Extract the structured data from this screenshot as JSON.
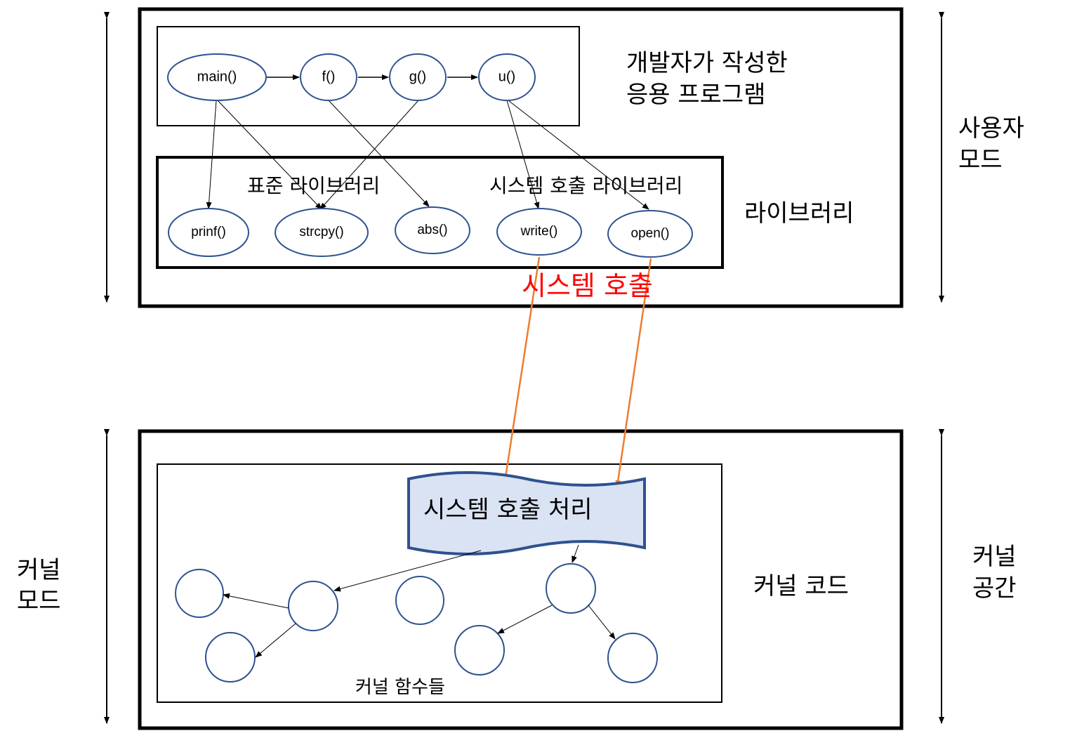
{
  "colors": {
    "node_stroke": "#2F528F",
    "syscall_arrow": "#ED7D31",
    "syscall_label": "#FF0000",
    "handler_fill": "#DAE3F3"
  },
  "user_space": {
    "app_label_line1": "개발자가 작성한",
    "app_label_line2": "응용 프로그램",
    "library_label": "라이브러리",
    "mode_label_line1": "사용자",
    "mode_label_line2": "모드",
    "app_functions": [
      "main()",
      "f()",
      "g()",
      "u()"
    ],
    "std_lib_label": "표준 라이브러리",
    "syscall_lib_label": "시스템 호출 라이브러리",
    "lib_functions": [
      "prinf()",
      "strcpy()",
      "abs()",
      "write()",
      "open()"
    ]
  },
  "system_call_label": "시스템 호출",
  "kernel_space": {
    "handler_label": "시스템 호출 처리",
    "kernel_code_label": "커널 코드",
    "kernel_functions_label": "커널 함수들",
    "space_label_line1": "커널",
    "space_label_line2": "공간",
    "mode_label_line1": "커널",
    "mode_label_line2": "모드"
  }
}
